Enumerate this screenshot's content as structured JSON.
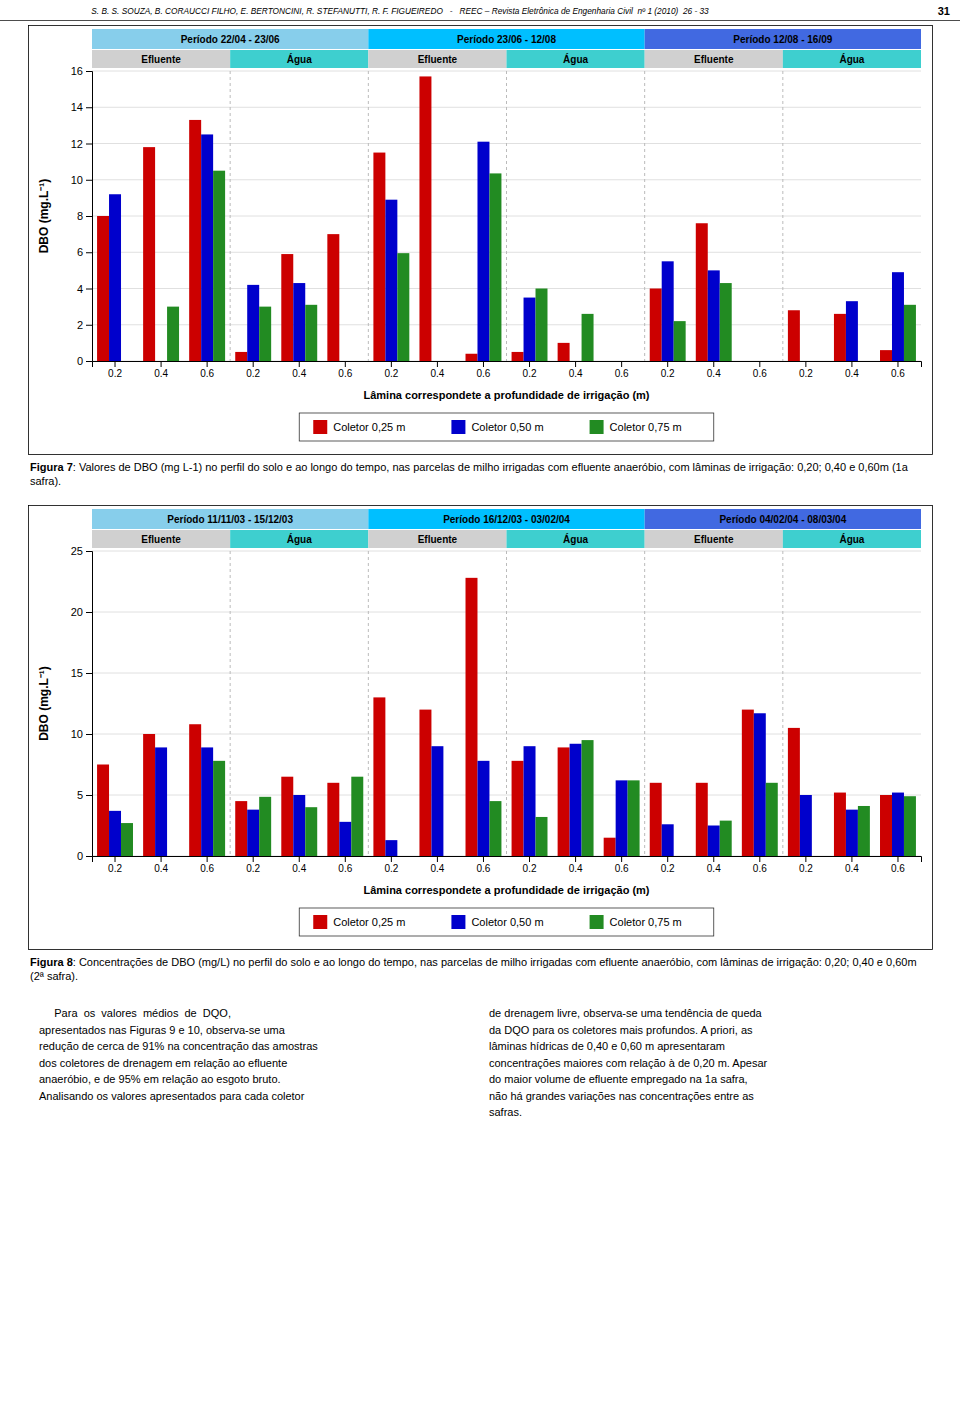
{
  "chart_data": [
    {
      "type": "bar",
      "categories": [
        "0.2",
        "0.4",
        "0.6",
        "0.2",
        "0.4",
        "0.6",
        "0.2",
        "0.4",
        "0.6",
        "0.2",
        "0.4",
        "0.6",
        "0.2",
        "0.4",
        "0.6",
        "0.2",
        "0.4",
        "0.6"
      ],
      "series": [
        {
          "name": "Coletor 0,25 m",
          "color": "#CC0000",
          "values": [
            8.0,
            11.8,
            13.3,
            0.5,
            5.9,
            7.0,
            11.5,
            15.7,
            0.4,
            0.5,
            1.0,
            0.0,
            4.0,
            7.6,
            0.0,
            2.8,
            2.6,
            0.6
          ]
        },
        {
          "name": "Coletor 0,50 m",
          "color": "#0000CC",
          "values": [
            9.2,
            0.0,
            12.5,
            4.2,
            4.3,
            0.0,
            8.9,
            0.0,
            12.1,
            3.5,
            0.0,
            0.0,
            5.5,
            5.0,
            0.0,
            0.0,
            3.3,
            4.9
          ]
        },
        {
          "name": "Coletor 0,75 m",
          "color": "#228B22",
          "values": [
            0.0,
            3.0,
            10.5,
            3.0,
            3.1,
            0.0,
            5.95,
            0.0,
            10.35,
            4.0,
            2.6,
            0.0,
            2.2,
            4.3,
            0.0,
            0.0,
            0.0,
            3.1
          ]
        }
      ],
      "xlabel": "Lâmina correspondete a profundidade de irrigação (m)",
      "ylabel": "DBO (mg.L⁻¹)",
      "ylim": [
        0,
        16
      ],
      "yticks": [
        0,
        2,
        4,
        6,
        8,
        10,
        12,
        14,
        16
      ],
      "grid": true,
      "legend": "bottom",
      "periods": [
        {
          "label": "Período 22/04 - 23/06",
          "color": "#87CEEB"
        },
        {
          "label": "Período 23/06 - 12/08",
          "color": "#00BFFF"
        },
        {
          "label": "Período 12/08 - 16/09",
          "color": "#4169E1"
        }
      ],
      "subperiods": [
        {
          "label": "Efluente",
          "color": "#D0D0D0"
        },
        {
          "label": "Água",
          "color": "#3ECFCF"
        },
        {
          "label": "Efluente",
          "color": "#D0D0D0"
        },
        {
          "label": "Água",
          "color": "#3ECFCF"
        },
        {
          "label": "Efluente",
          "color": "#D0D0D0"
        },
        {
          "label": "Água",
          "color": "#3ECFCF"
        }
      ],
      "caption_label": "Figura 7",
      "caption": ": Valores de DBO (mg L-1) no perfil do solo e ao longo do tempo, nas parcelas de milho irrigadas com efluente anaeróbio, com lâminas de irrigação: 0,20; 0,40 e 0,60m (1a safra)."
    },
    {
      "type": "bar",
      "categories": [
        "0.2",
        "0.4",
        "0.6",
        "0.2",
        "0.4",
        "0.6",
        "0.2",
        "0.4",
        "0.6",
        "0.2",
        "0.4",
        "0.6",
        "0.2",
        "0.4",
        "0.6",
        "0.2",
        "0.4",
        "0.6"
      ],
      "series": [
        {
          "name": "Coletor 0,25 m",
          "color": "#CC0000",
          "values": [
            7.5,
            10.0,
            10.8,
            4.5,
            6.5,
            6.0,
            13.0,
            12.0,
            22.8,
            7.8,
            8.9,
            1.5,
            6.0,
            6.0,
            12.0,
            10.5,
            5.2,
            5.0
          ]
        },
        {
          "name": "Coletor 0,50 m",
          "color": "#0000CC",
          "values": [
            3.7,
            8.9,
            8.9,
            3.8,
            5.0,
            2.8,
            1.3,
            9.0,
            7.8,
            9.0,
            9.2,
            6.2,
            2.6,
            2.5,
            11.7,
            5.0,
            3.8,
            5.2
          ]
        },
        {
          "name": "Coletor 0,75 m",
          "color": "#228B22",
          "values": [
            2.7,
            0.0,
            7.8,
            4.85,
            4.0,
            6.5,
            0.0,
            0.0,
            4.5,
            3.2,
            9.5,
            6.2,
            0.0,
            2.9,
            6.0,
            0.0,
            4.1,
            4.9
          ]
        }
      ],
      "xlabel": "Lâmina correspondete a profundidade de irrigação (m)",
      "ylabel": "DBO (mg.L⁻¹)",
      "ylim": [
        0,
        25
      ],
      "yticks": [
        0,
        5,
        10,
        15,
        20,
        25
      ],
      "grid": true,
      "legend": "bottom",
      "periods": [
        {
          "label": "Período 11/11/03 - 15/12/03",
          "color": "#87CEEB"
        },
        {
          "label": "Período 16/12/03 - 03/02/04",
          "color": "#00BFFF"
        },
        {
          "label": "Período 04/02/04 - 08/03/04",
          "color": "#4169E1"
        }
      ],
      "subperiods": [
        {
          "label": "Efluente",
          "color": "#D0D0D0"
        },
        {
          "label": "Água",
          "color": "#3ECFCF"
        },
        {
          "label": "Efluente",
          "color": "#D0D0D0"
        },
        {
          "label": "Água",
          "color": "#3ECFCF"
        },
        {
          "label": "Efluente",
          "color": "#D0D0D0"
        },
        {
          "label": "Água",
          "color": "#3ECFCF"
        }
      ],
      "caption_label": "Figura 8",
      "caption": ": Concentrações de DBO (mg/L) no perfil do solo e ao longo do tempo, nas parcelas de milho irrigadas com efluente anaeróbio, com lâminas de irrigação: 0,20; 0,40 e 0,60m (2ª safra)."
    }
  ],
  "page": {
    "header_text": "S. B. S. SOUZA, B. CORAUCCI FILHO, E. BERTONCINI, R. STEFANUTTI, R. F. FIGUEIREDO   -   REEC – Revista Eletrônica de Engenharia Civil  nº 1 (2010)  26 - 33",
    "page_num": "31",
    "paragraphs": [
      "     Para  os  valores  médios  de  DQO,\napresentados nas Figuras 9 e 10, observa-se uma\nredução de cerca de 91% na concentração das amostras\ndos coletores de drenagem em relação ao efluente\nanaeróbio, e de 95% em relação ao esgoto bruto.\nAnalisando os valores apresentados para cada coletor",
      "de drenagem livre, observa-se uma tendência de queda\nda DQO para os coletores mais profundos. A priori, as\nlâminas hídricas de 0,40 e 0,60 m apresentaram\nconcentrações maiores com relação à de 0,20 m. Apesar\ndo maior volume de efluente empregado na 1a safra,\nnão há grandes variações nas concentrações entre as\nsafras."
    ]
  }
}
